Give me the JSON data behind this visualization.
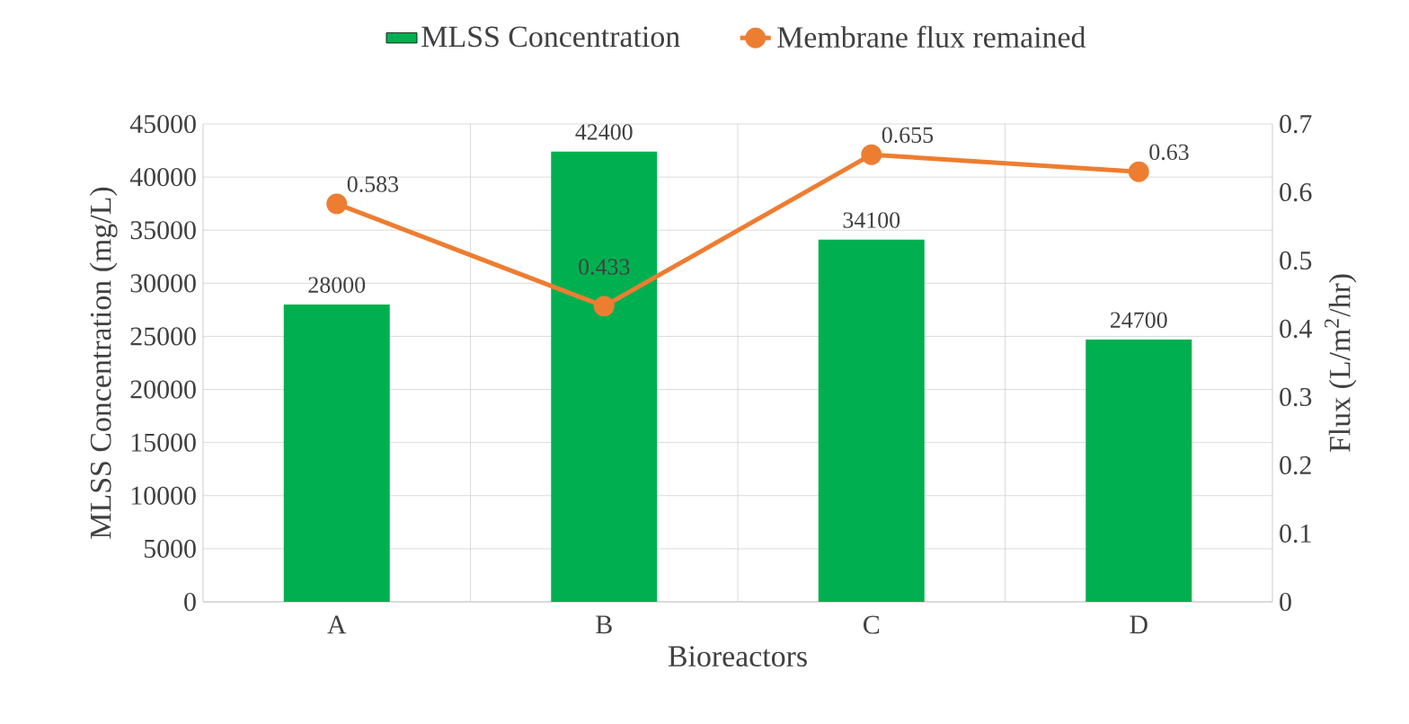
{
  "chart_data": {
    "type": "bar",
    "xlabel": "Bioreactors",
    "ylabel": "MLSS Concentration (mg/L)",
    "y2label": "Flux (L/m$^{2}$/hr)",
    "categories": [
      "A",
      "B",
      "C",
      "D"
    ],
    "series": [
      {
        "name": "MLSS Concentration",
        "type": "bar",
        "color": "#00b050",
        "values": [
          28000,
          42400,
          34100,
          24700
        ]
      },
      {
        "name": "Membrane flux remained",
        "type": "line",
        "axis": "y2",
        "color": "#ed7d31",
        "marker": "circle",
        "values": [
          0.583,
          0.433,
          0.655,
          0.63
        ]
      }
    ],
    "ylim": [
      0,
      45000
    ],
    "yticks": [
      0,
      5000,
      10000,
      15000,
      20000,
      25000,
      30000,
      35000,
      40000,
      45000
    ],
    "y2lim": [
      0,
      0.7
    ],
    "y2ticks": [
      0,
      0.1,
      0.2,
      0.3,
      0.4,
      0.5,
      0.6,
      0.7
    ],
    "data_labels": true,
    "grid": true,
    "legend": "top"
  }
}
